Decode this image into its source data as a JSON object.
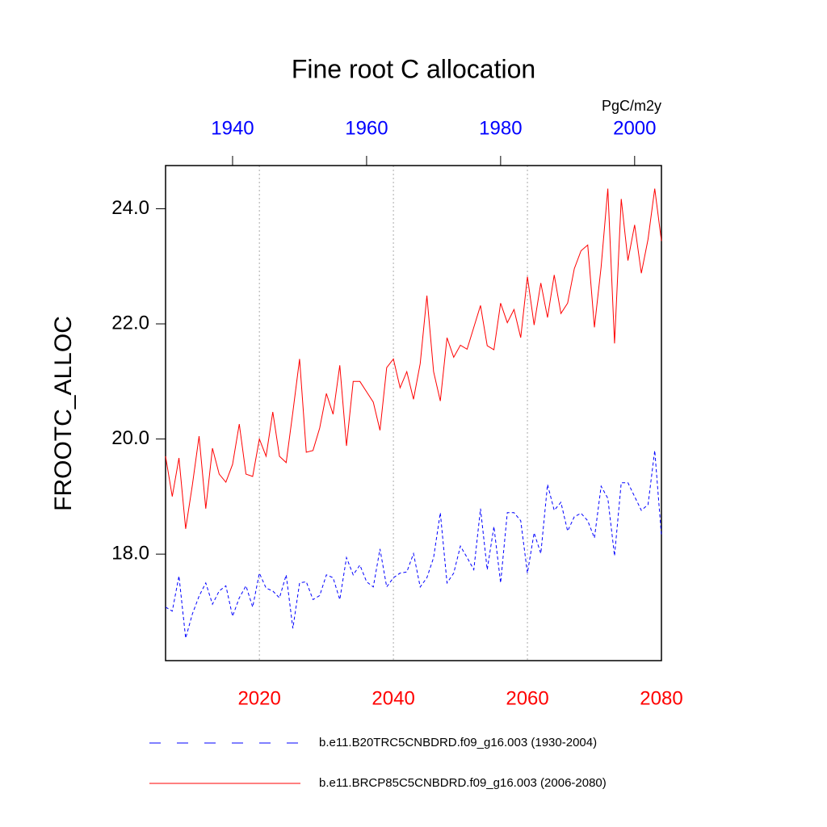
{
  "chart_data": {
    "type": "line",
    "title": "Fine root C allocation",
    "units": "PgC/m2y",
    "y_label": "FROOTC_ALLOC",
    "xlim": [
      2006,
      2080
    ],
    "xticks": [
      2020,
      2040,
      2060,
      2080
    ],
    "xtick_color": "#ff0000",
    "x2lim": [
      1930,
      2004
    ],
    "x2ticks": [
      1940,
      1960,
      1980,
      2000
    ],
    "x2tick_color": "#0000ff",
    "ylim": [
      16.15,
      24.75
    ],
    "yticks": [
      {
        "value": 18,
        "label": "18.0"
      },
      {
        "value": 20,
        "label": "20.0"
      },
      {
        "value": 22,
        "label": "22.0"
      },
      {
        "value": 24,
        "label": "24.0"
      }
    ],
    "grid": true,
    "series": [
      {
        "name": "b.e11.B20TRC5CNBDRD.f09_g16.003 (1930-2004)",
        "color": "#0000ff",
        "dashed": true,
        "axis": "x2",
        "x": [
          1930,
          1931,
          1932,
          1933,
          1934,
          1935,
          1936,
          1937,
          1938,
          1939,
          1940,
          1941,
          1942,
          1943,
          1944,
          1945,
          1946,
          1947,
          1948,
          1949,
          1950,
          1951,
          1952,
          1953,
          1954,
          1955,
          1956,
          1957,
          1958,
          1959,
          1960,
          1961,
          1962,
          1963,
          1964,
          1965,
          1966,
          1967,
          1968,
          1969,
          1970,
          1971,
          1972,
          1973,
          1974,
          1975,
          1976,
          1977,
          1978,
          1979,
          1980,
          1981,
          1982,
          1983,
          1984,
          1985,
          1986,
          1987,
          1988,
          1989,
          1990,
          1991,
          1992,
          1993,
          1994,
          1995,
          1996,
          1997,
          1998,
          1999,
          2000,
          2001,
          2002,
          2003,
          2004
        ],
        "values": [
          17.08,
          17.01,
          17.62,
          16.54,
          16.96,
          17.27,
          17.5,
          17.13,
          17.36,
          17.45,
          16.92,
          17.24,
          17.45,
          17.08,
          17.67,
          17.41,
          17.36,
          17.24,
          17.64,
          16.71,
          17.5,
          17.52,
          17.21,
          17.28,
          17.64,
          17.59,
          17.21,
          17.94,
          17.64,
          17.81,
          17.52,
          17.43,
          18.09,
          17.43,
          17.59,
          17.67,
          17.69,
          18.01,
          17.43,
          17.59,
          17.94,
          18.72,
          17.5,
          17.67,
          18.14,
          17.94,
          17.73,
          18.79,
          17.73,
          18.48,
          17.5,
          18.72,
          18.72,
          18.58,
          17.67,
          18.37,
          18.01,
          19.21,
          18.76,
          18.9,
          18.4,
          18.65,
          18.71,
          18.58,
          18.28,
          19.18,
          18.97,
          17.97,
          19.24,
          19.24,
          19.0,
          18.76,
          18.86,
          19.8,
          18.32
        ]
      },
      {
        "name": "b.e11.BRCP85C5CNBDRD.f09_g16.003 (2006-2080)",
        "color": "#ff0000",
        "dashed": false,
        "axis": "x",
        "x": [
          2006,
          2007,
          2008,
          2009,
          2010,
          2011,
          2012,
          2013,
          2014,
          2015,
          2016,
          2017,
          2018,
          2019,
          2020,
          2021,
          2022,
          2023,
          2024,
          2025,
          2026,
          2027,
          2028,
          2029,
          2030,
          2031,
          2032,
          2033,
          2034,
          2035,
          2036,
          2037,
          2038,
          2039,
          2040,
          2041,
          2042,
          2043,
          2044,
          2045,
          2046,
          2047,
          2048,
          2049,
          2050,
          2051,
          2052,
          2053,
          2054,
          2055,
          2056,
          2057,
          2058,
          2059,
          2060,
          2061,
          2062,
          2063,
          2064,
          2065,
          2066,
          2067,
          2068,
          2069,
          2070,
          2071,
          2072,
          2073,
          2074,
          2075,
          2076,
          2077,
          2078,
          2079,
          2080
        ],
        "values": [
          19.7,
          19.0,
          19.67,
          18.44,
          19.2,
          20.05,
          18.79,
          19.84,
          19.39,
          19.25,
          19.56,
          20.26,
          19.39,
          19.35,
          20.0,
          19.7,
          20.47,
          19.7,
          19.59,
          20.47,
          21.39,
          19.77,
          19.8,
          20.19,
          20.79,
          20.43,
          21.28,
          19.88,
          21.0,
          21.0,
          20.82,
          20.64,
          20.15,
          21.24,
          21.39,
          20.89,
          21.17,
          20.69,
          21.31,
          22.49,
          21.17,
          20.66,
          21.76,
          21.42,
          21.63,
          21.56,
          21.94,
          22.32,
          21.62,
          21.55,
          22.36,
          22.02,
          22.25,
          21.76,
          22.82,
          21.98,
          22.71,
          22.11,
          22.85,
          22.18,
          22.36,
          22.96,
          23.27,
          23.37,
          21.94,
          22.99,
          24.35,
          21.66,
          24.17,
          23.1,
          23.72,
          22.88,
          23.47,
          24.35,
          23.44
        ]
      }
    ]
  }
}
